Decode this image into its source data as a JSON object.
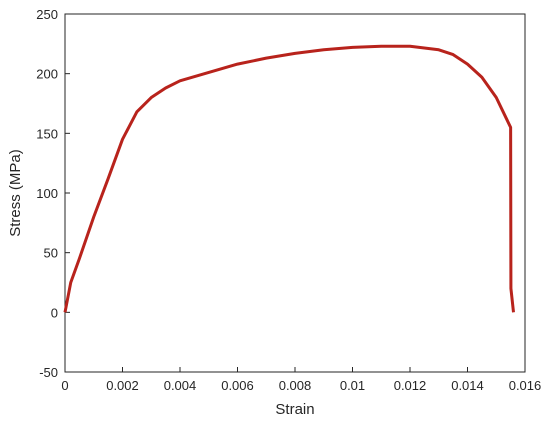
{
  "chart_data": {
    "type": "line",
    "x_label": "Strain",
    "y_label": "Stress (MPa)",
    "x": [
      0,
      0.0002,
      0.0005,
      0.001,
      0.0015,
      0.002,
      0.0025,
      0.003,
      0.0035,
      0.004,
      0.005,
      0.006,
      0.007,
      0.008,
      0.009,
      0.01,
      0.011,
      0.012,
      0.013,
      0.0135,
      0.014,
      0.0145,
      0.015,
      0.0153,
      0.0155,
      0.01551,
      0.0156
    ],
    "series": [
      {
        "color": "#b8231c",
        "values": [
          0,
          25,
          45,
          80,
          112,
          145,
          168,
          180,
          188,
          194,
          201,
          208,
          213,
          217,
          220,
          222,
          223,
          223,
          220,
          216,
          208,
          197,
          180,
          165,
          155,
          20,
          0
        ]
      }
    ],
    "xlim": [
      0,
      0.016
    ],
    "xticks": [
      0,
      0.002,
      0.004,
      0.006,
      0.008,
      0.01,
      0.012,
      0.014,
      0.016
    ],
    "ylim": [
      -50,
      250
    ],
    "yticks": [
      -50,
      0,
      50,
      100,
      150,
      200,
      250
    ],
    "grid": false
  }
}
